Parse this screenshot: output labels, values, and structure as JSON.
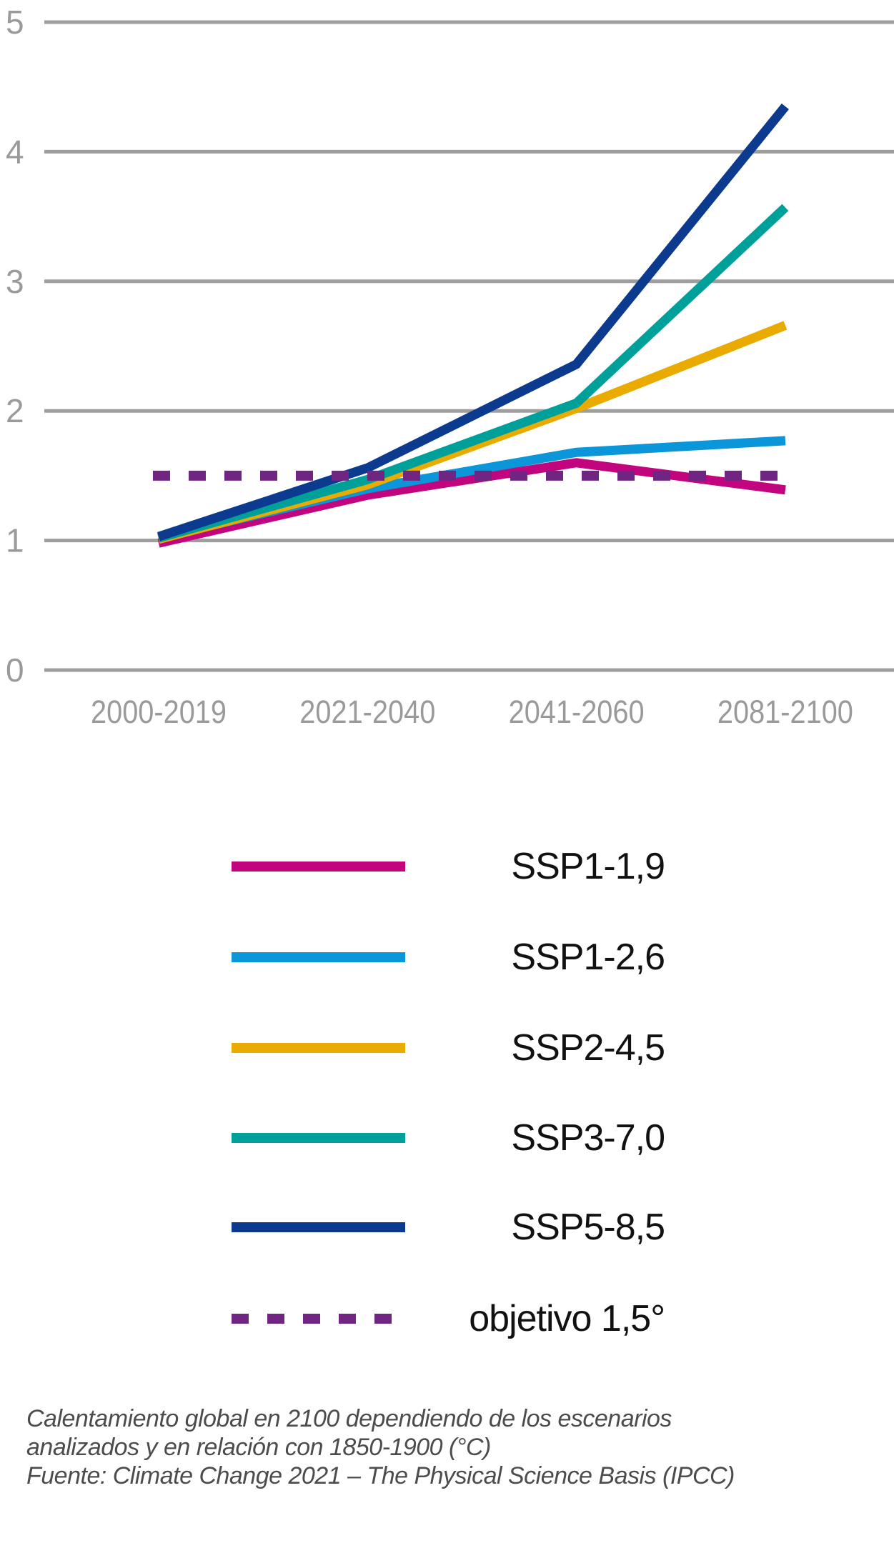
{
  "chart_data": {
    "type": "line",
    "categories": [
      "2000-2019",
      "2021-2040",
      "2041-2060",
      "2081-2100"
    ],
    "y_ticks": [
      "0",
      "1",
      "2",
      "3",
      "4",
      "5"
    ],
    "ylim": [
      0,
      5
    ],
    "grid": "horizontal",
    "grid_color": "#9E9E9E",
    "tick_color": "#9A9A9A",
    "legend_position": "below-chart",
    "series": [
      {
        "name": "SSP1-1,9",
        "color": "#C2047E",
        "style": "solid",
        "values": [
          0.98,
          1.35,
          1.6,
          1.39
        ]
      },
      {
        "name": "SSP1-2,6",
        "color": "#0A96D8",
        "style": "solid",
        "values": [
          1.02,
          1.4,
          1.68,
          1.77
        ]
      },
      {
        "name": "SSP2-4,5",
        "color": "#E9AB00",
        "style": "solid",
        "values": [
          1.01,
          1.43,
          2.02,
          2.66
        ]
      },
      {
        "name": "SSP3-7,0",
        "color": "#00A09A",
        "style": "solid",
        "values": [
          1.02,
          1.47,
          2.06,
          3.57
        ]
      },
      {
        "name": "SSP5-8,5",
        "color": "#0C3A8E",
        "style": "solid",
        "values": [
          1.03,
          1.56,
          2.36,
          4.35
        ]
      },
      {
        "name": "objetivo 1,5°",
        "color": "#702582",
        "style": "dashed",
        "values": [
          1.5,
          1.5,
          1.5,
          1.5
        ]
      }
    ]
  },
  "caption": {
    "line1": "Calentamiento global en 2100 dependiendo de los escenarios",
    "line2": "analizados y en relación con 1850-1900 (°C)",
    "line3": "Fuente: Climate Change 2021 – The Physical Science Basis (IPCC)"
  }
}
